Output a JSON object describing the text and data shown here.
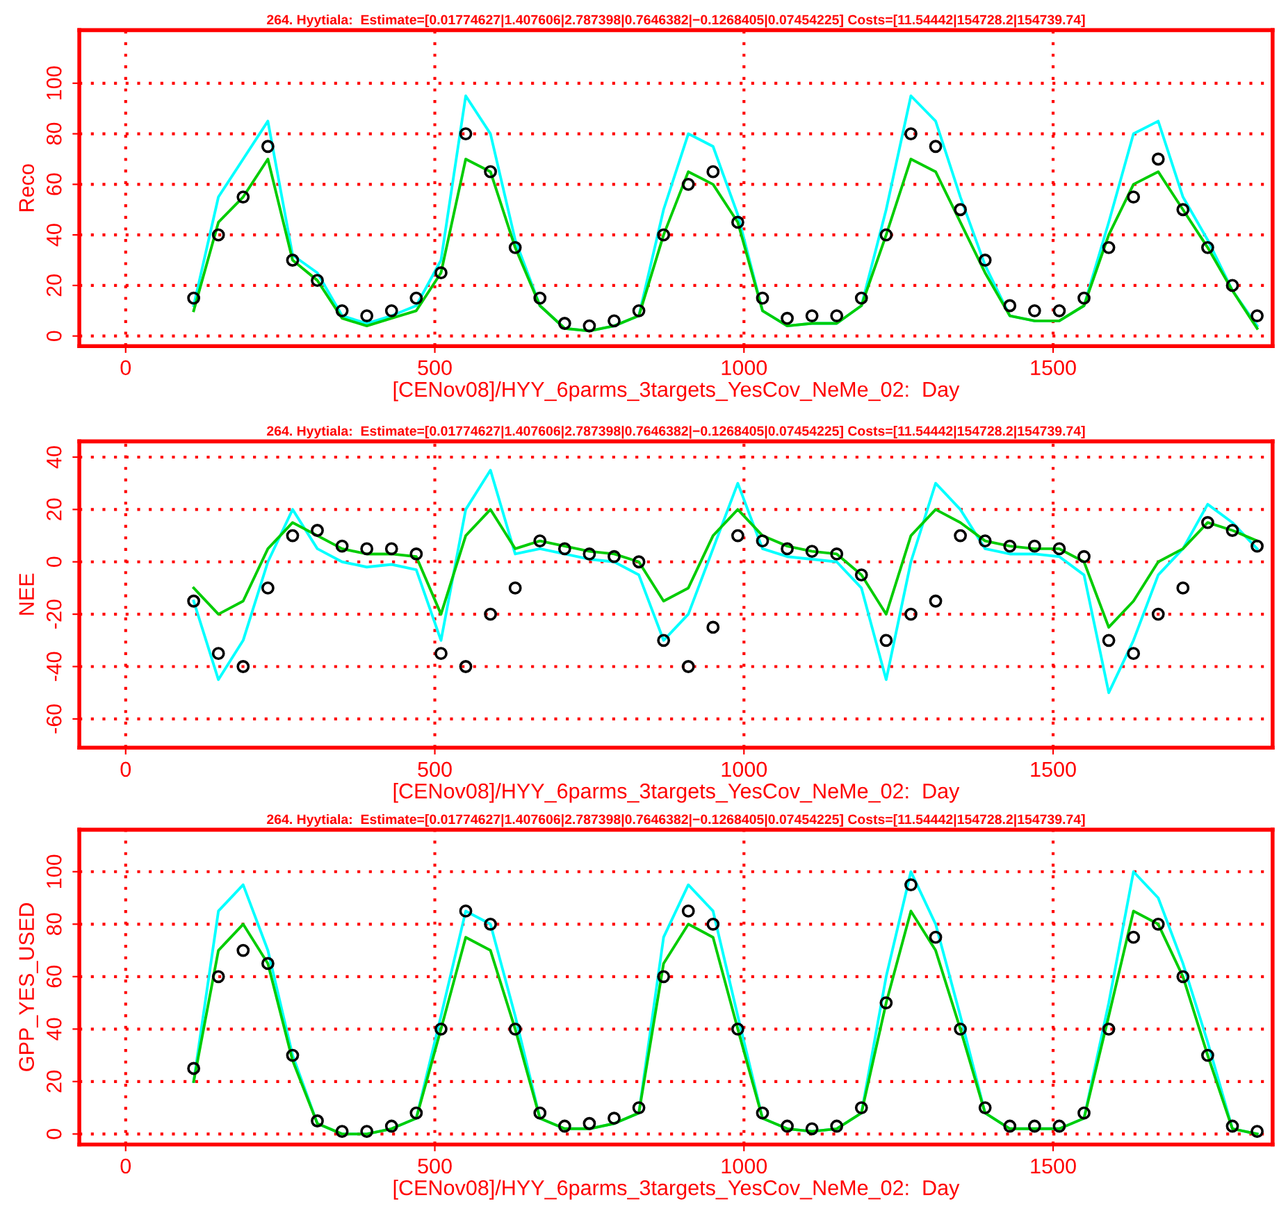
{
  "chart_data": [
    {
      "type": "line",
      "title": "264. Hyytiala:  Estimate=[0.01774627|1.407606|2.787398|0.7646382|−0.1268405|0.07454225] Costs=[11.54442|154728.2|154739.74]",
      "xlabel": "[CENov08]/HYY_6parms_3targets_YesCov_NeMe_02:  Day",
      "ylabel": "Reco",
      "xlim": [
        -75,
        1855
      ],
      "xticks": [
        0,
        500,
        1000,
        1500
      ],
      "ylim": [
        -4,
        121
      ],
      "yticks": [
        0,
        20,
        40,
        60,
        80,
        100
      ],
      "grid": true,
      "x": [
        110,
        150,
        190,
        230,
        270,
        310,
        350,
        390,
        430,
        470,
        510,
        550,
        590,
        630,
        670,
        710,
        750,
        790,
        830,
        870,
        910,
        950,
        990,
        1030,
        1070,
        1110,
        1150,
        1190,
        1230,
        1270,
        1310,
        1350,
        1390,
        1430,
        1470,
        1510,
        1550,
        1590,
        1630,
        1670,
        1710,
        1750,
        1790,
        1830
      ],
      "series": [
        {
          "type": "scatter",
          "marker": "circle",
          "color": "#000000",
          "values": [
            15,
            40,
            55,
            75,
            30,
            22,
            10,
            8,
            10,
            15,
            25,
            80,
            65,
            35,
            15,
            5,
            4,
            6,
            10,
            40,
            60,
            65,
            45,
            15,
            7,
            8,
            8,
            15,
            40,
            80,
            75,
            50,
            30,
            12,
            10,
            10,
            15,
            35,
            55,
            70,
            50,
            35,
            20,
            8
          ]
        },
        {
          "color": "#00ffff",
          "values": [
            12,
            55,
            70,
            85,
            32,
            25,
            8,
            5,
            8,
            12,
            30,
            95,
            80,
            38,
            12,
            3,
            2,
            4,
            8,
            50,
            80,
            75,
            48,
            10,
            4,
            5,
            5,
            12,
            50,
            95,
            85,
            55,
            28,
            8,
            6,
            6,
            12,
            45,
            80,
            85,
            55,
            38,
            18,
            4
          ]
        },
        {
          "color": "#00cc00",
          "values": [
            10,
            45,
            55,
            70,
            30,
            22,
            7,
            4,
            7,
            10,
            25,
            70,
            65,
            35,
            12,
            3,
            2,
            4,
            8,
            40,
            65,
            60,
            45,
            10,
            4,
            5,
            5,
            12,
            40,
            70,
            65,
            45,
            25,
            8,
            6,
            6,
            12,
            40,
            60,
            65,
            50,
            35,
            18,
            3
          ]
        }
      ]
    },
    {
      "type": "line",
      "title": "264. Hyytiala:  Estimate=[0.01774627|1.407606|2.787398|0.7646382|−0.1268405|0.07454225] Costs=[11.54442|154728.2|154739.74]",
      "xlabel": "[CENov08]/HYY_6parms_3targets_YesCov_NeMe_02:  Day",
      "ylabel": "NEE",
      "xlim": [
        -75,
        1855
      ],
      "xticks": [
        0,
        500,
        1000,
        1500
      ],
      "ylim": [
        -71,
        46
      ],
      "yticks": [
        -60,
        -40,
        -20,
        0,
        20,
        40
      ],
      "grid": true,
      "x": [
        110,
        150,
        190,
        230,
        270,
        310,
        350,
        390,
        430,
        470,
        510,
        550,
        590,
        630,
        670,
        710,
        750,
        790,
        830,
        870,
        910,
        950,
        990,
        1030,
        1070,
        1110,
        1150,
        1190,
        1230,
        1270,
        1310,
        1350,
        1390,
        1430,
        1470,
        1510,
        1550,
        1590,
        1630,
        1670,
        1710,
        1750,
        1790,
        1830
      ],
      "series": [
        {
          "type": "scatter",
          "marker": "circle",
          "color": "#000000",
          "values": [
            -15,
            -35,
            -40,
            -10,
            10,
            12,
            6,
            5,
            5,
            3,
            -35,
            -40,
            -20,
            -10,
            8,
            5,
            3,
            2,
            0,
            -30,
            -40,
            -25,
            10,
            8,
            5,
            4,
            3,
            -5,
            -30,
            -20,
            -15,
            10,
            8,
            6,
            6,
            5,
            2,
            -30,
            -35,
            -20,
            -10,
            15,
            12,
            6
          ]
        },
        {
          "color": "#00ffff",
          "values": [
            -15,
            -45,
            -30,
            0,
            20,
            5,
            0,
            -2,
            -1,
            -3,
            -30,
            20,
            35,
            3,
            5,
            3,
            1,
            0,
            -5,
            -30,
            -20,
            5,
            30,
            5,
            2,
            1,
            0,
            -10,
            -45,
            0,
            30,
            20,
            5,
            3,
            3,
            2,
            -5,
            -50,
            -30,
            -5,
            5,
            22,
            15,
            5
          ]
        },
        {
          "color": "#00cc00",
          "values": [
            -10,
            -20,
            -15,
            5,
            15,
            10,
            5,
            3,
            3,
            2,
            -20,
            10,
            20,
            5,
            8,
            6,
            4,
            3,
            0,
            -15,
            -10,
            10,
            20,
            10,
            6,
            4,
            3,
            -5,
            -20,
            10,
            20,
            15,
            8,
            6,
            5,
            5,
            0,
            -25,
            -15,
            0,
            5,
            15,
            12,
            8
          ]
        }
      ]
    },
    {
      "type": "line",
      "title": "264. Hyytiala:  Estimate=[0.01774627|1.407606|2.787398|0.7646382|−0.1268405|0.07454225] Costs=[11.54442|154728.2|154739.74]",
      "xlabel": "[CENov08]/HYY_6parms_3targets_YesCov_NeMe_02:  Day",
      "ylabel": "GPP_YES_USED",
      "xlim": [
        -75,
        1855
      ],
      "xticks": [
        0,
        500,
        1000,
        1500
      ],
      "ylim": [
        -4,
        116
      ],
      "yticks": [
        0,
        20,
        40,
        60,
        80,
        100
      ],
      "grid": true,
      "x": [
        110,
        150,
        190,
        230,
        270,
        310,
        350,
        390,
        430,
        470,
        510,
        550,
        590,
        630,
        670,
        710,
        750,
        790,
        830,
        870,
        910,
        950,
        990,
        1030,
        1070,
        1110,
        1150,
        1190,
        1230,
        1270,
        1310,
        1350,
        1390,
        1430,
        1470,
        1510,
        1550,
        1590,
        1630,
        1670,
        1710,
        1750,
        1790,
        1830
      ],
      "series": [
        {
          "type": "scatter",
          "marker": "circle",
          "color": "#000000",
          "values": [
            25,
            60,
            70,
            65,
            30,
            5,
            1,
            1,
            3,
            8,
            40,
            85,
            80,
            40,
            8,
            3,
            4,
            6,
            10,
            60,
            85,
            80,
            40,
            8,
            3,
            2,
            3,
            10,
            50,
            95,
            75,
            40,
            10,
            3,
            3,
            3,
            8,
            40,
            75,
            80,
            60,
            30,
            3,
            1
          ]
        },
        {
          "color": "#00ffff",
          "values": [
            20,
            85,
            95,
            70,
            30,
            4,
            0,
            0,
            2,
            6,
            45,
            85,
            80,
            45,
            6,
            2,
            2,
            4,
            8,
            75,
            95,
            85,
            45,
            6,
            2,
            1,
            2,
            8,
            60,
            100,
            80,
            45,
            8,
            2,
            2,
            2,
            6,
            50,
            100,
            90,
            65,
            35,
            2,
            0
          ]
        },
        {
          "color": "#00cc00",
          "values": [
            20,
            70,
            80,
            65,
            28,
            4,
            0,
            0,
            2,
            6,
            40,
            75,
            70,
            40,
            6,
            2,
            2,
            4,
            8,
            65,
            80,
            75,
            40,
            6,
            2,
            1,
            2,
            8,
            50,
            85,
            70,
            40,
            8,
            2,
            2,
            2,
            6,
            45,
            85,
            80,
            60,
            30,
            2,
            0
          ]
        }
      ]
    }
  ]
}
